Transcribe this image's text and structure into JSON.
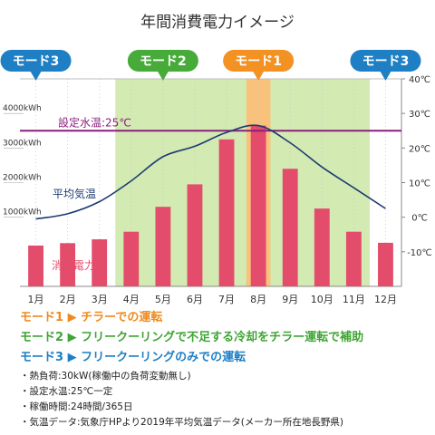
{
  "chart_data": {
    "type": "bar+line",
    "title": "年間消費電力イメージ",
    "categories": [
      "1月",
      "2月",
      "3月",
      "4月",
      "5月",
      "6月",
      "7月",
      "8月",
      "9月",
      "10月",
      "11月",
      "12月"
    ],
    "series": [
      {
        "name": "消費電力量",
        "axis": "left",
        "unit": "kWh",
        "values": [
          180,
          250,
          360,
          580,
          1300,
          1950,
          3250,
          3650,
          2400,
          1250,
          580,
          260
        ]
      },
      {
        "name": "平均気温",
        "axis": "right",
        "unit": "℃",
        "values": [
          -0.5,
          1.0,
          4.5,
          10.5,
          17.5,
          20.5,
          24.5,
          26.5,
          21.5,
          14.5,
          8.5,
          2.5
        ]
      }
    ],
    "setpoint": {
      "label": "設定水温:25℃",
      "value": 25
    },
    "left_ticks": [
      "1000kWh",
      "2000kWh",
      "3000kWh",
      "4000kWh"
    ],
    "left_tick_values": [
      1000,
      2000,
      3000,
      4000
    ],
    "right_ticks": [
      "40℃",
      "30℃",
      "20℃",
      "10℃",
      "0℃",
      "-10℃"
    ],
    "right_tick_values": [
      40,
      30,
      20,
      10,
      0,
      -10
    ],
    "ylim_left": [
      -1000,
      5000
    ],
    "ylim_right": [
      -20,
      40
    ],
    "mode_badges": [
      {
        "label": "モード3",
        "color": "#1e7fc4",
        "month_index": 0
      },
      {
        "label": "モード2",
        "color": "#47ab3a",
        "month_index": 4
      },
      {
        "label": "モード1",
        "color": "#f39123",
        "month_index": 7
      },
      {
        "label": "モード3",
        "color": "#1e7fc4",
        "month_index": 11
      }
    ],
    "mode_shading": [
      {
        "mode": "モード2",
        "from_month_index": 3,
        "to_month_index": 10,
        "color": "#d3eab2"
      },
      {
        "mode": "モード1",
        "from_month_index": 7,
        "to_month_index": 7,
        "color": "#f8c27d"
      }
    ],
    "colors": {
      "bar": "#e34c6b",
      "temp_line": "#1b3b72",
      "setpoint": "#8a1f7c",
      "energy_label": "#e34c6b",
      "temp_label": "#1b3b72"
    }
  },
  "legend": [
    {
      "text": "モード1 ▶ チラーでの運転",
      "color": "#f08a1c"
    },
    {
      "text": "モード2 ▶ フリークーリングで不足する冷却をチラー運転で補助",
      "color": "#3fa535"
    },
    {
      "text": "モード3 ▶ フリークーリングのみでの運転",
      "color": "#1e7fc4"
    }
  ],
  "notes": [
    "・熱負荷:30kW(稼働中の負荷変動無し)",
    "・設定水温:25℃一定",
    "・稼働時間:24時間/365日",
    "・気温データ:気象庁HPより2019年平均気温データ(メーカー所在地長野県)"
  ]
}
